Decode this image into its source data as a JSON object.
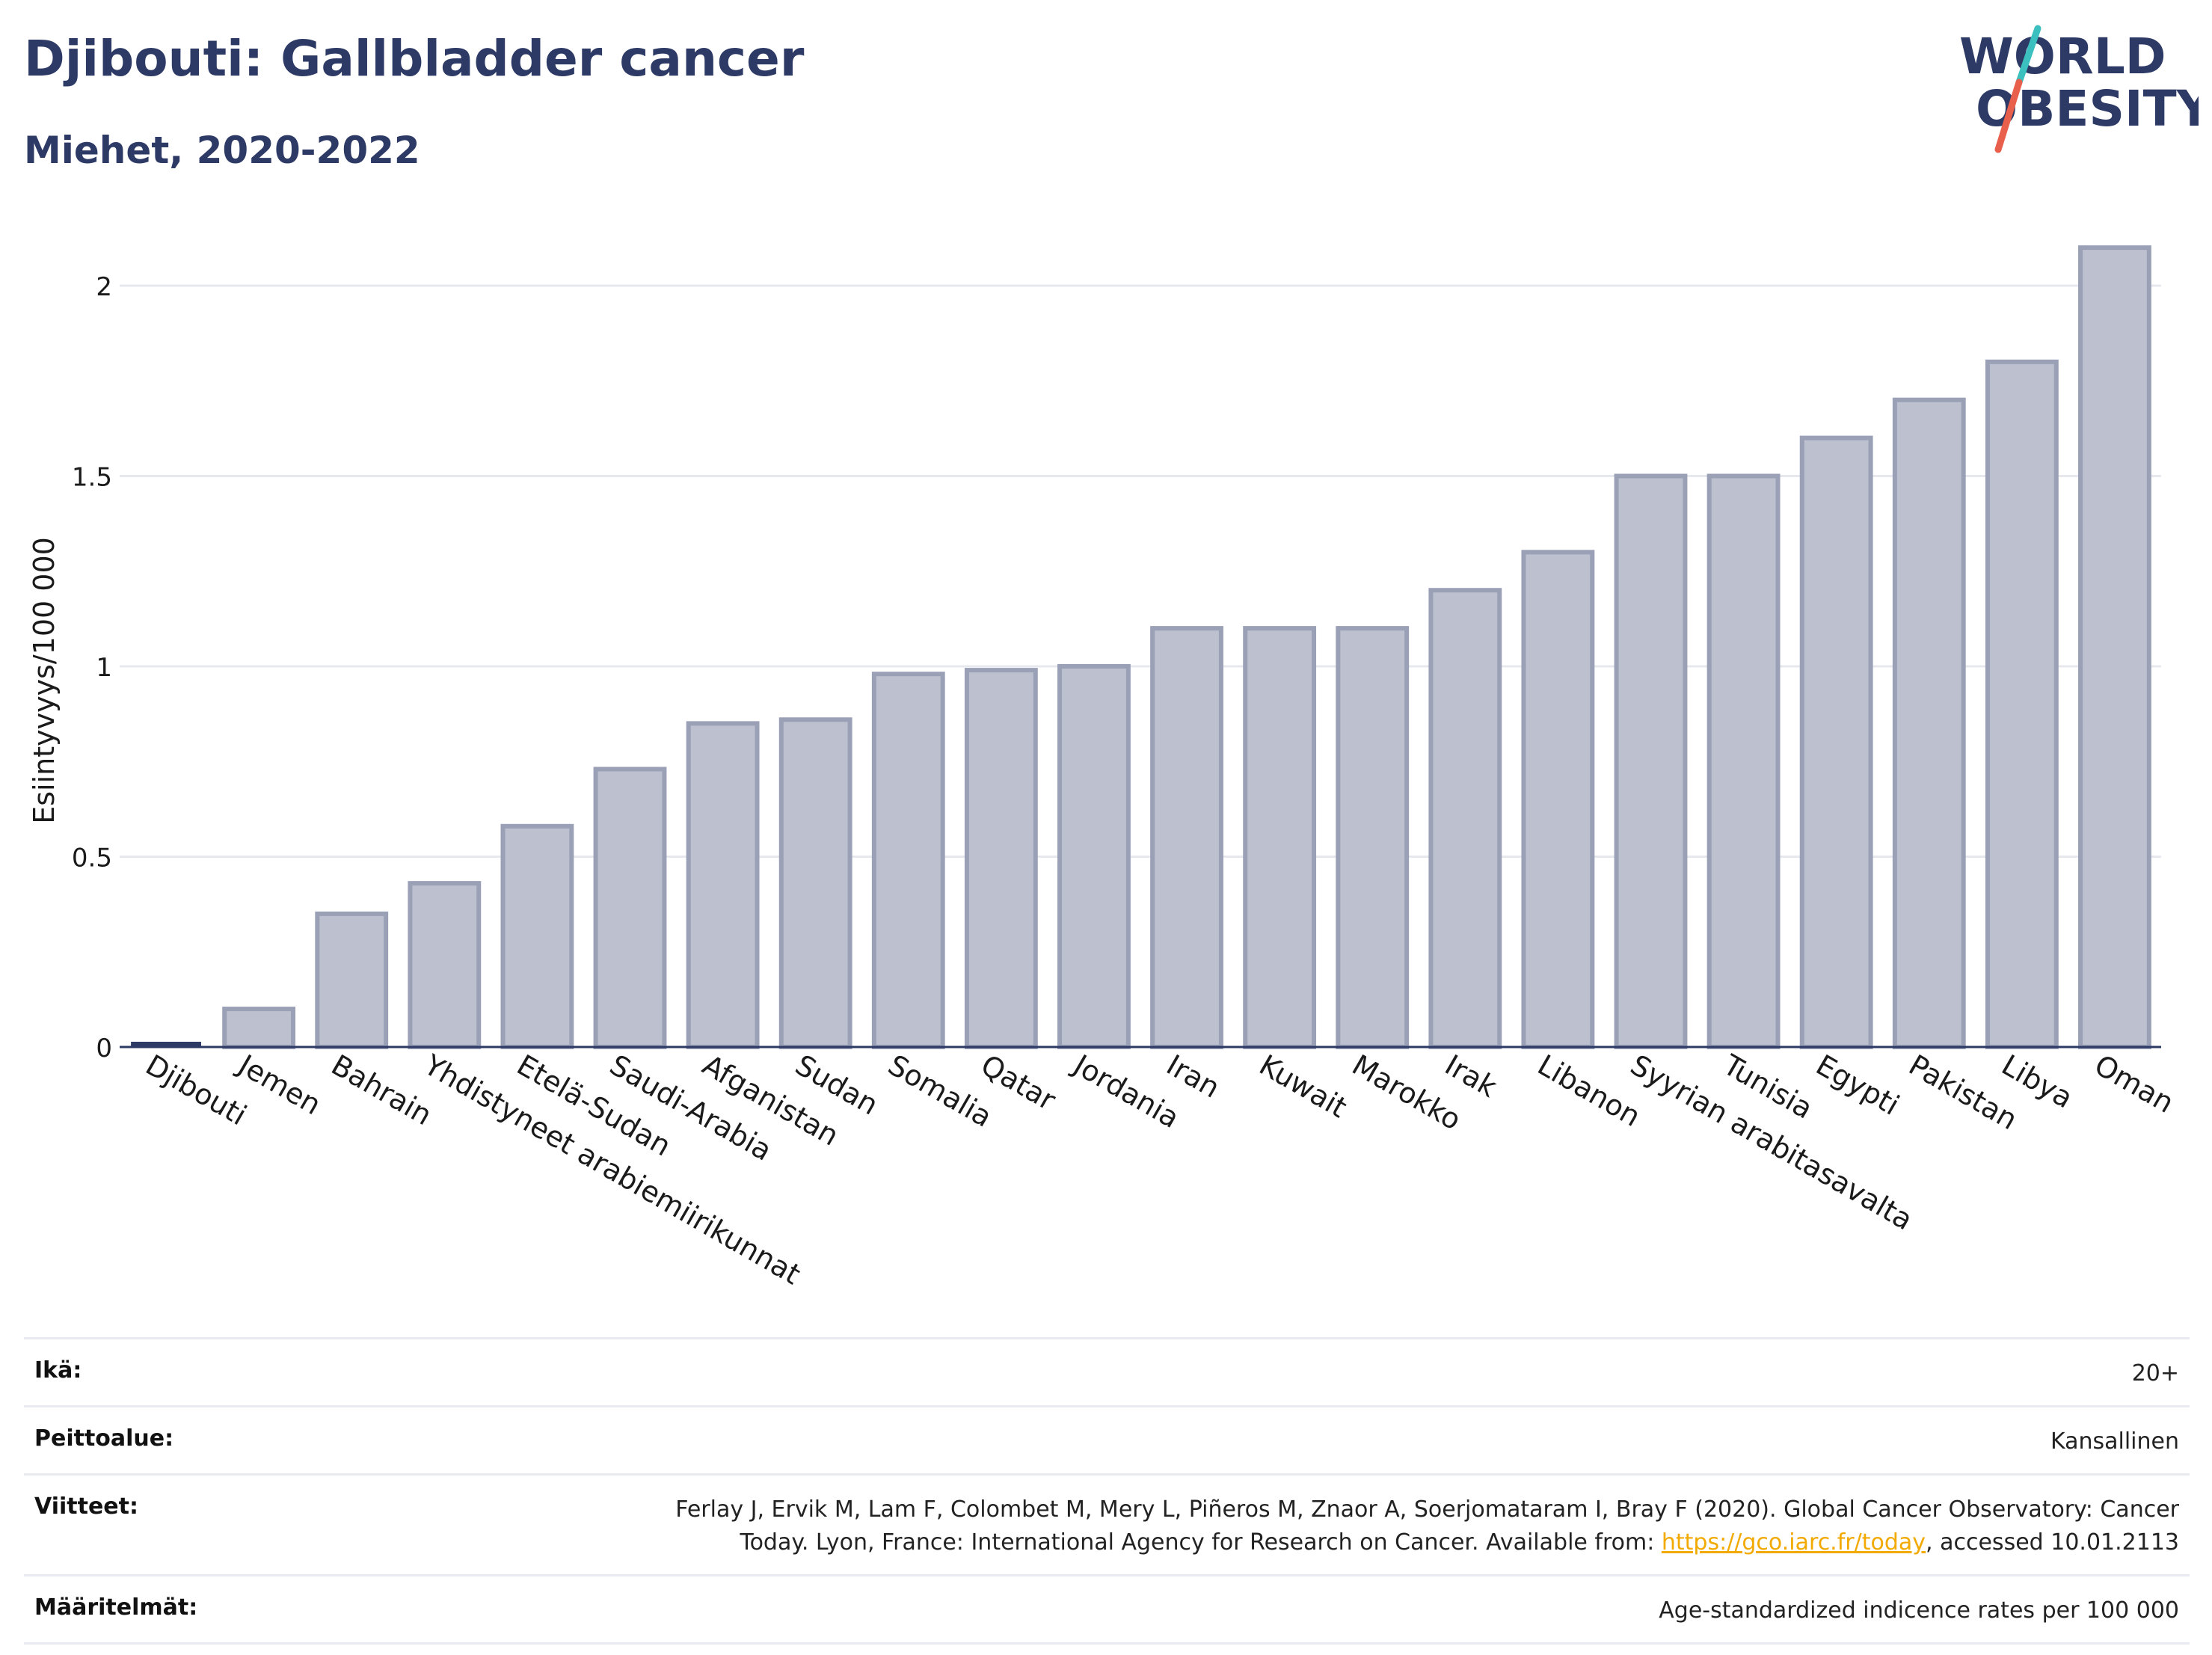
{
  "header": {
    "title": "Djibouti: Gallbladder cancer",
    "subtitle": "Miehet, 2020-2022"
  },
  "logo": {
    "line1": "WORLD",
    "line2": "OBESITY",
    "colors": {
      "text": "#2e3a66",
      "slash_top": "#3cbfbf",
      "slash_bottom": "#e8604c"
    }
  },
  "chart_data": {
    "type": "bar",
    "ylabel": "Esiintyvyys/100 000",
    "ylim": [
      0,
      2.2
    ],
    "yticks": [
      {
        "value": 0,
        "label": "0"
      },
      {
        "value": 0.5,
        "label": "0.5"
      },
      {
        "value": 1,
        "label": "1"
      },
      {
        "value": 1.5,
        "label": "1.5"
      },
      {
        "value": 2,
        "label": "2"
      }
    ],
    "grid": true,
    "highlight": "Djibouti",
    "colors": {
      "bar_fill": "#bcc0cf",
      "bar_stroke": "#9aa0b6",
      "highlight": "#2e3a66",
      "grid": "#e6e8ee",
      "axis": "#2e3a66"
    },
    "categories": [
      "Djibouti",
      "Jemen",
      "Bahrain",
      "Yhdistyneet arabiemiirikunnat",
      "Etelä-Sudan",
      "Saudi-Arabia",
      "Afganistan",
      "Sudan",
      "Somalia",
      "Qatar",
      "Jordania",
      "Iran",
      "Kuwait",
      "Marokko",
      "Irak",
      "Libanon",
      "Syyrian arabitasavalta",
      "Tunisia",
      "Egypti",
      "Pakistan",
      "Libya",
      "Oman"
    ],
    "values": [
      0.01,
      0.1,
      0.35,
      0.43,
      0.58,
      0.73,
      0.85,
      0.86,
      0.98,
      0.99,
      1.0,
      1.1,
      1.1,
      1.1,
      1.2,
      1.3,
      1.5,
      1.5,
      1.6,
      1.7,
      1.8,
      2.1
    ]
  },
  "meta": {
    "age_label": "Ikä:",
    "age_value": "20+",
    "coverage_label": "Peittoalue:",
    "coverage_value": "Kansallinen",
    "refs_label": "Viitteet:",
    "refs_text_1": "Ferlay J, Ervik M, Lam F, Colombet M, Mery L, Piñeros M, Znaor A, Soerjomataram I, Bray F (2020). Global Cancer Observatory: Cancer",
    "refs_text_2": "Today. Lyon, France: International Agency for Research on Cancer. Available from: ",
    "refs_link": "https://gco.iarc.fr/today",
    "refs_text_3": ", accessed 10.01.2113",
    "definitions_label": "Määritelmät:",
    "definitions_value": "Age-standardized indicence rates per 100 000"
  }
}
